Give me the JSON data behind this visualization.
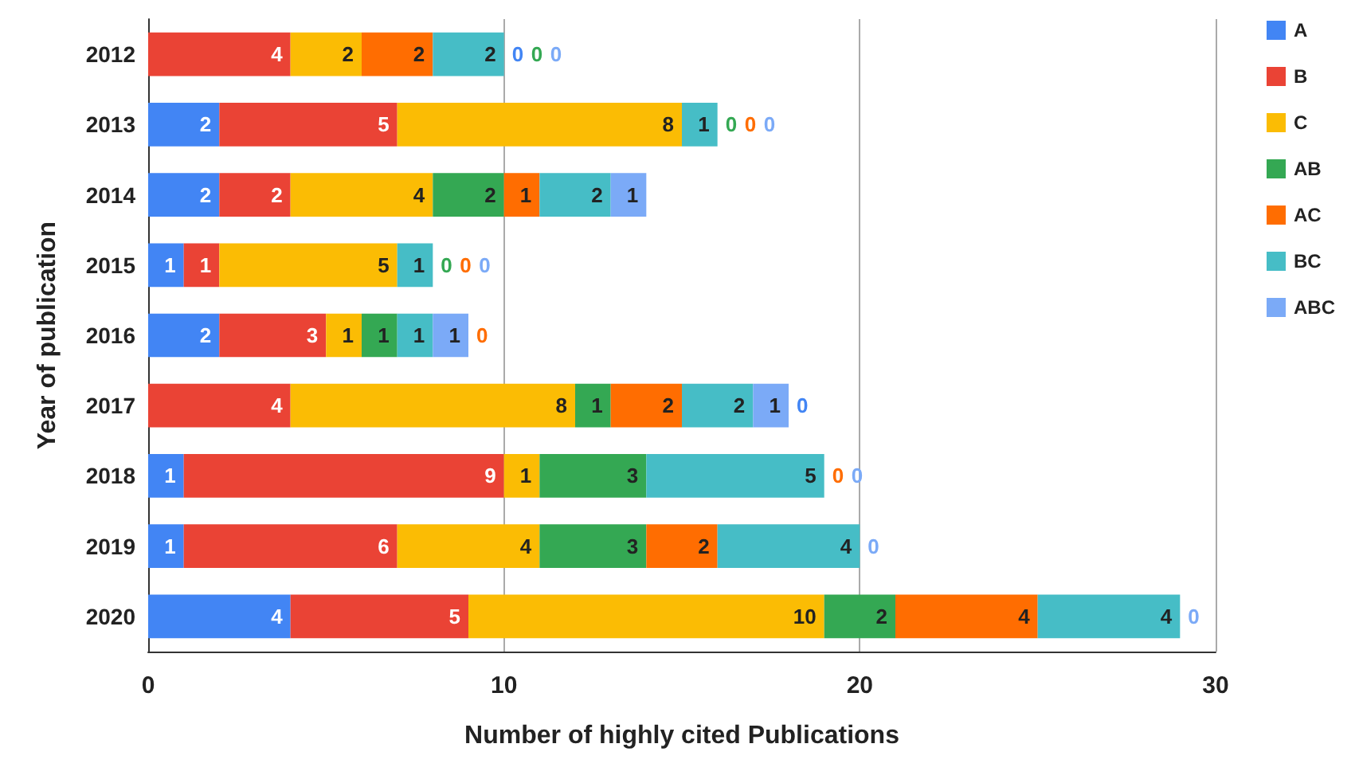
{
  "chart_data": {
    "type": "bar",
    "orientation": "horizontal",
    "stacked": true,
    "xlabel": "Number of highly cited Publications",
    "ylabel": "Year of publication",
    "categories": [
      "2012",
      "2013",
      "2014",
      "2015",
      "2016",
      "2017",
      "2018",
      "2019",
      "2020"
    ],
    "series": [
      {
        "name": "A",
        "color": "#4285f4",
        "values": [
          0,
          2,
          2,
          1,
          2,
          0,
          1,
          1,
          4
        ]
      },
      {
        "name": "B",
        "color": "#ea4335",
        "values": [
          4,
          5,
          2,
          1,
          3,
          4,
          9,
          6,
          5
        ]
      },
      {
        "name": "C",
        "color": "#fbbc04",
        "values": [
          2,
          8,
          4,
          5,
          1,
          8,
          1,
          4,
          10
        ]
      },
      {
        "name": "AB",
        "color": "#34a853",
        "values": [
          0,
          0,
          2,
          0,
          1,
          1,
          3,
          3,
          2
        ]
      },
      {
        "name": "AC",
        "color": "#ff6d01",
        "values": [
          2,
          0,
          1,
          0,
          0,
          2,
          0,
          2,
          4
        ]
      },
      {
        "name": "BC",
        "color": "#46bdc6",
        "values": [
          2,
          1,
          2,
          1,
          1,
          2,
          5,
          4,
          4
        ]
      },
      {
        "name": "ABC",
        "color": "#7baaf7",
        "values": [
          0,
          0,
          1,
          0,
          1,
          1,
          0,
          0,
          0
        ]
      }
    ],
    "xlim": [
      0,
      30
    ],
    "xticks": [
      0,
      10,
      20,
      30
    ],
    "grid": "x",
    "legend": "right",
    "data_labels": true
  }
}
